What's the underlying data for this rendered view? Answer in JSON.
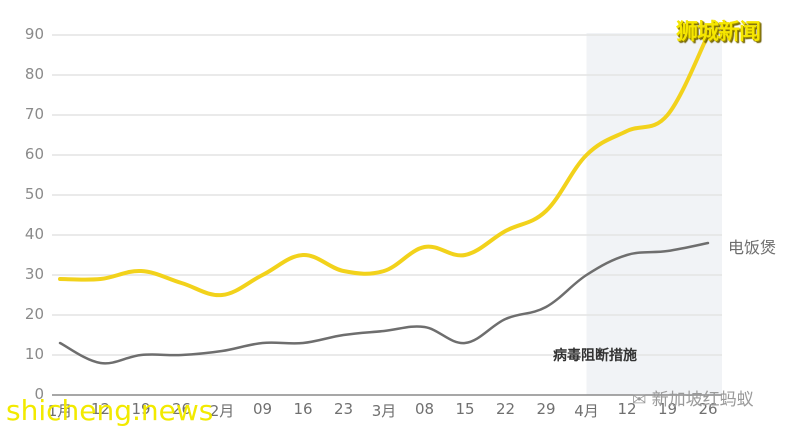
{
  "chart_data": {
    "type": "line",
    "title": "",
    "xlabel": "",
    "ylabel": "",
    "ylim": [
      0,
      90
    ],
    "yticks": [
      0,
      10,
      20,
      30,
      40,
      50,
      60,
      70,
      80,
      90
    ],
    "grid": true,
    "categories": [
      "1月",
      "12",
      "19",
      "26",
      "2月",
      "09",
      "16",
      "23",
      "3月",
      "08",
      "15",
      "22",
      "29",
      "4月",
      "12",
      "19",
      "26"
    ],
    "series": [
      {
        "name": "狮城新闻",
        "color": "#f2d21b",
        "values": [
          29,
          29,
          31,
          28,
          25,
          30,
          35,
          31,
          31,
          37,
          35,
          41,
          46,
          60,
          66,
          70,
          90
        ]
      },
      {
        "name": "电饭煲",
        "color": "#6e6e6e",
        "values": [
          13,
          8,
          10,
          10,
          11,
          13,
          13,
          15,
          16,
          17,
          13,
          19,
          22,
          30,
          35,
          36,
          38
        ]
      }
    ],
    "shaded_region": {
      "from_index": 13,
      "to_index": 16,
      "label": "病毒阻断措施",
      "color": "#f1f3f6"
    },
    "series_labels": {
      "gray": "电饭煲"
    }
  },
  "labels": {
    "series_gray": "电饭煲",
    "annotation": "病毒阻断措施",
    "watermark_top": "狮城新闻",
    "watermark_bottom": "shicheng.news",
    "watermark_wechat": "新加坡红蚂蚁"
  }
}
